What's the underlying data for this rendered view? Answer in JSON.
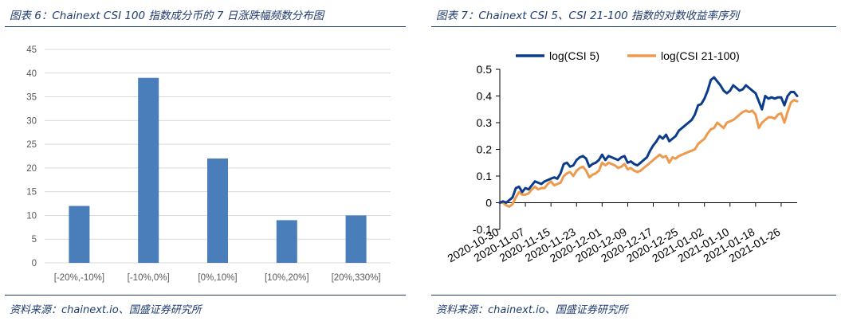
{
  "left_panel": {
    "title": "图表 6：Chainext CSI 100 指数成分币的 7 日涨跌幅频数分布图",
    "source": "资料来源：chainext.io、国盛证券研究所"
  },
  "right_panel": {
    "title": "图表 7：Chainext CSI 5、CSI 21-100 指数的对数收益率序列",
    "source": "资料来源：chainext.io、国盛证券研究所"
  },
  "colors": {
    "bar": "#4a7ebb",
    "csi5": "#0b3c8c",
    "csi21": "#ed9a4f",
    "rule": "#1f3d6d"
  },
  "chart_data": [
    {
      "type": "bar",
      "categories": [
        "[-20%,-10%]",
        "[-10%,0%]",
        "[0%,10%]",
        "[10%,20%]",
        "[20%,330%]"
      ],
      "values": [
        12,
        39,
        22,
        9,
        10
      ],
      "ylim": [
        0,
        45
      ],
      "yticks": [
        0,
        5,
        10,
        15,
        20,
        25,
        30,
        35,
        40,
        45
      ],
      "grid": true
    },
    {
      "type": "line",
      "xticks": [
        "2020-10-30",
        "2020-11-07",
        "2020-11-15",
        "2020-11-23",
        "2020-12-01",
        "2020-12-09",
        "2020-12-17",
        "2020-12-25",
        "2021-01-02",
        "2021-01-10",
        "2021-01-18",
        "2021-01-26"
      ],
      "ylim": [
        -0.1,
        0.5
      ],
      "yticks": [
        "-0.1",
        "0",
        "0.1",
        "0.2",
        "0.3",
        "0.4",
        "0.5"
      ],
      "legend_position": "top",
      "grid": false,
      "series": [
        {
          "name": "log(CSI 5)",
          "x": [
            "2020-10-30",
            "2020-10-31",
            "2020-11-01",
            "2020-11-02",
            "2020-11-03",
            "2020-11-04",
            "2020-11-05",
            "2020-11-06",
            "2020-11-07",
            "2020-11-08",
            "2020-11-09",
            "2020-11-10",
            "2020-11-11",
            "2020-11-12",
            "2020-11-13",
            "2020-11-14",
            "2020-11-15",
            "2020-11-16",
            "2020-11-17",
            "2020-11-18",
            "2020-11-19",
            "2020-11-20",
            "2020-11-21",
            "2020-11-22",
            "2020-11-23",
            "2020-11-24",
            "2020-11-25",
            "2020-11-26",
            "2020-11-27",
            "2020-11-28",
            "2020-11-29",
            "2020-11-30",
            "2020-12-01",
            "2020-12-02",
            "2020-12-03",
            "2020-12-04",
            "2020-12-05",
            "2020-12-06",
            "2020-12-07",
            "2020-12-08",
            "2020-12-09",
            "2020-12-10",
            "2020-12-11",
            "2020-12-12",
            "2020-12-13",
            "2020-12-14",
            "2020-12-15",
            "2020-12-16",
            "2020-12-17",
            "2020-12-18",
            "2020-12-19",
            "2020-12-20",
            "2020-12-21",
            "2020-12-22",
            "2020-12-23",
            "2020-12-24",
            "2020-12-25",
            "2020-12-26",
            "2020-12-27",
            "2020-12-28",
            "2020-12-29",
            "2020-12-30",
            "2020-12-31",
            "2021-01-01",
            "2021-01-02",
            "2021-01-03",
            "2021-01-04",
            "2021-01-05",
            "2021-01-06",
            "2021-01-07",
            "2021-01-08",
            "2021-01-09",
            "2021-01-10",
            "2021-01-11",
            "2021-01-12",
            "2021-01-13",
            "2021-01-14",
            "2021-01-15",
            "2021-01-16",
            "2021-01-17",
            "2021-01-18",
            "2021-01-19",
            "2021-01-20",
            "2021-01-21",
            "2021-01-22",
            "2021-01-23",
            "2021-01-24",
            "2021-01-25",
            "2021-01-26",
            "2021-01-27",
            "2021-01-28",
            "2021-01-29",
            "2021-01-30",
            "2021-01-31"
          ],
          "values": [
            0.0,
            0.005,
            0.0,
            0.01,
            0.02,
            0.055,
            0.06,
            0.04,
            0.055,
            0.05,
            0.065,
            0.08,
            0.075,
            0.07,
            0.08,
            0.085,
            0.09,
            0.095,
            0.09,
            0.11,
            0.145,
            0.15,
            0.135,
            0.14,
            0.16,
            0.17,
            0.175,
            0.165,
            0.135,
            0.145,
            0.15,
            0.16,
            0.18,
            0.16,
            0.175,
            0.17,
            0.165,
            0.16,
            0.17,
            0.175,
            0.15,
            0.155,
            0.145,
            0.14,
            0.15,
            0.16,
            0.17,
            0.195,
            0.215,
            0.23,
            0.25,
            0.24,
            0.255,
            0.23,
            0.24,
            0.25,
            0.27,
            0.28,
            0.29,
            0.3,
            0.31,
            0.33,
            0.365,
            0.37,
            0.39,
            0.42,
            0.46,
            0.47,
            0.455,
            0.44,
            0.42,
            0.41,
            0.42,
            0.44,
            0.43,
            0.42,
            0.425,
            0.44,
            0.43,
            0.42,
            0.41,
            0.38,
            0.35,
            0.4,
            0.39,
            0.395,
            0.39,
            0.395,
            0.395,
            0.365,
            0.4,
            0.415,
            0.415,
            0.4
          ]
        },
        {
          "name": "log(CSI 21-100)",
          "x": [
            "2020-10-30",
            "2020-10-31",
            "2020-11-01",
            "2020-11-02",
            "2020-11-03",
            "2020-11-04",
            "2020-11-05",
            "2020-11-06",
            "2020-11-07",
            "2020-11-08",
            "2020-11-09",
            "2020-11-10",
            "2020-11-11",
            "2020-11-12",
            "2020-11-13",
            "2020-11-14",
            "2020-11-15",
            "2020-11-16",
            "2020-11-17",
            "2020-11-18",
            "2020-11-19",
            "2020-11-20",
            "2020-11-21",
            "2020-11-22",
            "2020-11-23",
            "2020-11-24",
            "2020-11-25",
            "2020-11-26",
            "2020-11-27",
            "2020-11-28",
            "2020-11-29",
            "2020-11-30",
            "2020-12-01",
            "2020-12-02",
            "2020-12-03",
            "2020-12-04",
            "2020-12-05",
            "2020-12-06",
            "2020-12-07",
            "2020-12-08",
            "2020-12-09",
            "2020-12-10",
            "2020-12-11",
            "2020-12-12",
            "2020-12-13",
            "2020-12-14",
            "2020-12-15",
            "2020-12-16",
            "2020-12-17",
            "2020-12-18",
            "2020-12-19",
            "2020-12-20",
            "2020-12-21",
            "2020-12-22",
            "2020-12-23",
            "2020-12-24",
            "2020-12-25",
            "2020-12-26",
            "2020-12-27",
            "2020-12-28",
            "2020-12-29",
            "2020-12-30",
            "2020-12-31",
            "2021-01-01",
            "2021-01-02",
            "2021-01-03",
            "2021-01-04",
            "2021-01-05",
            "2021-01-06",
            "2021-01-07",
            "2021-01-08",
            "2021-01-09",
            "2021-01-10",
            "2021-01-11",
            "2021-01-12",
            "2021-01-13",
            "2021-01-14",
            "2021-01-15",
            "2021-01-16",
            "2021-01-17",
            "2021-01-18",
            "2021-01-19",
            "2021-01-20",
            "2021-01-21",
            "2021-01-22",
            "2021-01-23",
            "2021-01-24",
            "2021-01-25",
            "2021-01-26",
            "2021-01-27",
            "2021-01-28",
            "2021-01-29",
            "2021-01-30",
            "2021-01-31"
          ],
          "values": [
            0.0,
            0.0,
            -0.01,
            -0.015,
            -0.005,
            0.02,
            0.04,
            0.03,
            0.03,
            0.035,
            0.05,
            0.06,
            0.05,
            0.055,
            0.055,
            0.07,
            0.08,
            0.065,
            0.07,
            0.075,
            0.1,
            0.11,
            0.115,
            0.1,
            0.12,
            0.13,
            0.135,
            0.12,
            0.095,
            0.105,
            0.11,
            0.12,
            0.15,
            0.14,
            0.15,
            0.145,
            0.14,
            0.13,
            0.135,
            0.145,
            0.125,
            0.13,
            0.12,
            0.115,
            0.12,
            0.13,
            0.14,
            0.15,
            0.16,
            0.17,
            0.18,
            0.17,
            0.175,
            0.15,
            0.17,
            0.165,
            0.175,
            0.18,
            0.185,
            0.19,
            0.195,
            0.2,
            0.22,
            0.23,
            0.24,
            0.26,
            0.275,
            0.28,
            0.3,
            0.29,
            0.28,
            0.3,
            0.305,
            0.31,
            0.32,
            0.33,
            0.34,
            0.345,
            0.34,
            0.345,
            0.33,
            0.28,
            0.3,
            0.31,
            0.32,
            0.32,
            0.315,
            0.33,
            0.335,
            0.3,
            0.34,
            0.375,
            0.385,
            0.38
          ]
        }
      ]
    }
  ]
}
